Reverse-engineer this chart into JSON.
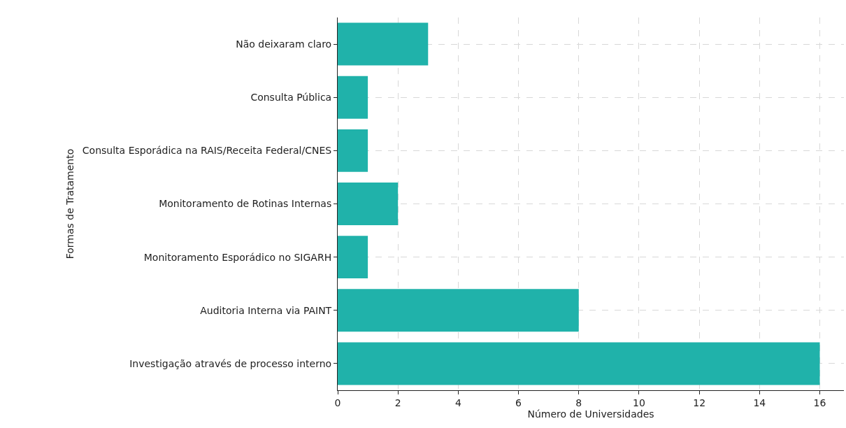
{
  "chart_data": {
    "type": "bar",
    "orientation": "horizontal",
    "xlabel": "Número de Universidades",
    "ylabel": "Formas de Tratamento",
    "categories": [
      "Não deixaram claro",
      "Consulta Pública",
      "Consulta Esporádica na RAIS/Receita Federal/CNES",
      "Monitoramento de Rotinas Internas",
      "Monitoramento Esporádico no SIGARH",
      "Auditoria Interna via PAINT",
      "Investigação através de processo interno"
    ],
    "values": [
      3,
      1,
      1,
      2,
      1,
      8,
      16
    ],
    "color": "#20b2aa",
    "xlim": [
      0,
      16.8
    ],
    "xticks": [
      0,
      2,
      4,
      6,
      8,
      10,
      12,
      14,
      16
    ],
    "grid": true
  }
}
